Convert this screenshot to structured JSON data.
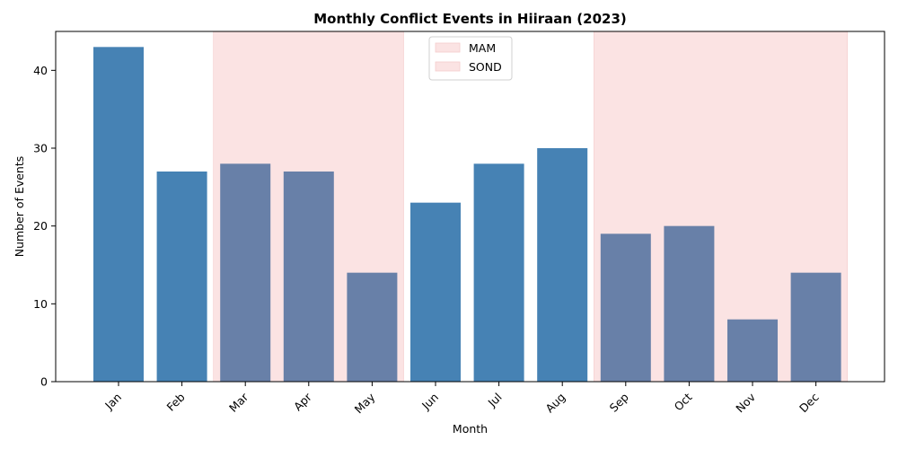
{
  "chart_data": {
    "type": "bar",
    "title": "Monthly Conflict Events in Hiiraan (2023)",
    "xlabel": "Month",
    "ylabel": "Number of Events",
    "categories": [
      "Jan",
      "Feb",
      "Mar",
      "Apr",
      "May",
      "Jun",
      "Jul",
      "Aug",
      "Sep",
      "Oct",
      "Nov",
      "Dec"
    ],
    "values": [
      43,
      27,
      28,
      27,
      14,
      23,
      28,
      30,
      19,
      20,
      8,
      14
    ],
    "ylim": [
      0,
      45
    ],
    "yticks": [
      0,
      10,
      20,
      30,
      40
    ],
    "grid": false,
    "legend_position": "top-center",
    "colors": {
      "bar": "#4682b4",
      "bar_in_season": "#6880a8",
      "season_shade": "#fbe3e3",
      "axis": "#000000"
    },
    "seasons": [
      {
        "name": "MAM",
        "start": "Mar",
        "end": "May"
      },
      {
        "name": "SOND",
        "start": "Sep",
        "end": "Dec"
      }
    ]
  }
}
